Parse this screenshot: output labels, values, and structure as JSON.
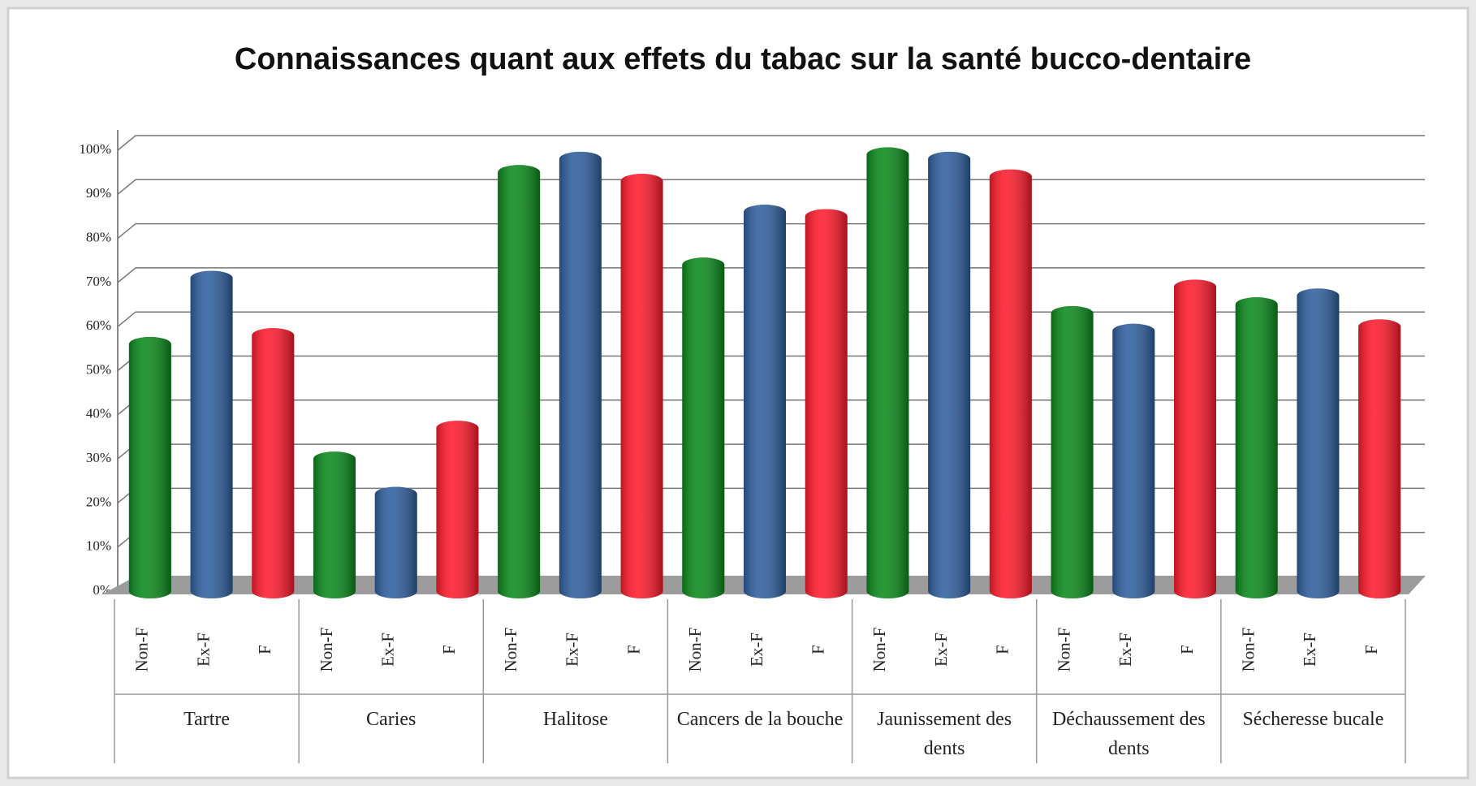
{
  "chart_data": {
    "type": "bar",
    "title": "Connaissances quant aux effets du tabac sur la santé bucco-dentaire",
    "categories": [
      "Tartre",
      "Caries",
      "Halitose",
      "Cancers de la bouche",
      "Jaunissement des dents",
      "Déchaussement des dents",
      "Sécheresse bucale"
    ],
    "series": [
      {
        "name": "Non-F",
        "color": "#0b8a1c",
        "values": [
          56,
          30,
          95,
          74,
          99,
          63,
          65
        ]
      },
      {
        "name": "Ex-F",
        "color": "#2f5f9e",
        "values": [
          71,
          22,
          98,
          86,
          98,
          59,
          67
        ]
      },
      {
        "name": "F",
        "color": "#ff1a2c",
        "values": [
          58,
          37,
          93,
          85,
          94,
          69,
          60
        ]
      }
    ],
    "ylim": [
      0,
      100
    ],
    "yticks": [
      {
        "value": 0,
        "label": "0%"
      },
      {
        "value": 10,
        "label": "10%"
      },
      {
        "value": 20,
        "label": "20%"
      },
      {
        "value": 30,
        "label": "30%"
      },
      {
        "value": 40,
        "label": "40%"
      },
      {
        "value": 50,
        "label": "50%"
      },
      {
        "value": 60,
        "label": "60%"
      },
      {
        "value": 70,
        "label": "70%"
      },
      {
        "value": 80,
        "label": "80%"
      },
      {
        "value": 90,
        "label": "90%"
      },
      {
        "value": 100,
        "label": "100%"
      }
    ],
    "grid": true
  }
}
